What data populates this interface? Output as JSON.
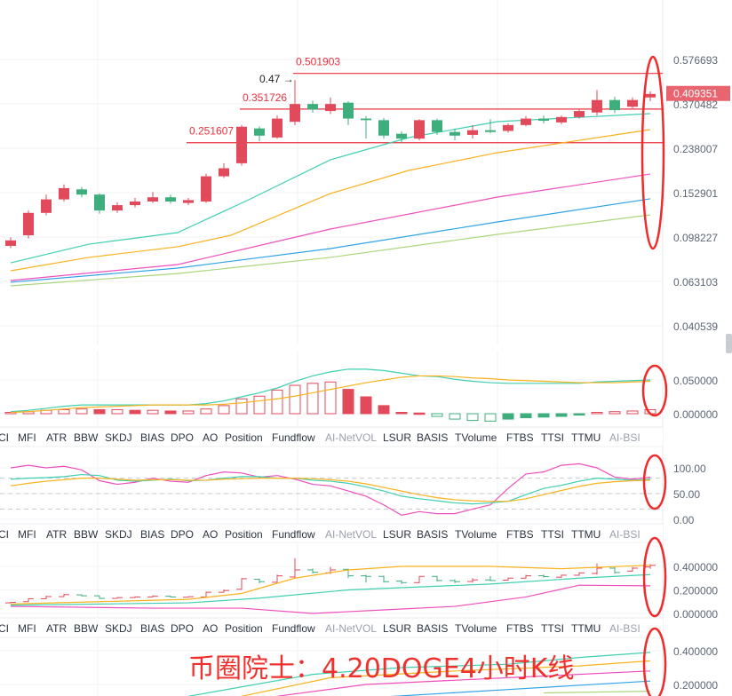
{
  "colors": {
    "up": "#e04a5a",
    "down": "#3dae7c",
    "level": "#e8323f",
    "annotation": "#ef2b2b",
    "price_tag": "#e8646f",
    "teal": "#3fcfb0",
    "orange": "#f9b21d",
    "pink": "#ee4fbd",
    "blue": "#2fa3e6",
    "lightgreen": "#a9d67c"
  },
  "main": {
    "price_axis": [
      "0.576693",
      "0.370482",
      "0.238007",
      "0.152901",
      "0.098227",
      "0.063103",
      "0.040539"
    ],
    "price_axis_values": [
      0.576693,
      0.370482,
      0.238007,
      0.152901,
      0.098227,
      0.063103,
      0.040539
    ],
    "current_price": "0.409351",
    "current_price_value": 0.409351,
    "levels": [
      {
        "label": "0.501903",
        "value": 0.501903
      },
      {
        "label": "0.351726",
        "value": 0.351726
      },
      {
        "label": "0.251607",
        "value": 0.251607
      }
    ],
    "high_marker": "0.47 →",
    "candles": [
      [
        0.09,
        0.095,
        0.098,
        0.088
      ],
      [
        0.1,
        0.125,
        0.128,
        0.097
      ],
      [
        0.125,
        0.143,
        0.15,
        0.122
      ],
      [
        0.143,
        0.16,
        0.166,
        0.14
      ],
      [
        0.158,
        0.15,
        0.162,
        0.146
      ],
      [
        0.15,
        0.128,
        0.152,
        0.124
      ],
      [
        0.128,
        0.135,
        0.139,
        0.125
      ],
      [
        0.135,
        0.14,
        0.145,
        0.132
      ],
      [
        0.14,
        0.146,
        0.154,
        0.138
      ],
      [
        0.146,
        0.14,
        0.15,
        0.137
      ],
      [
        0.138,
        0.142,
        0.145,
        0.135
      ],
      [
        0.14,
        0.18,
        0.185,
        0.138
      ],
      [
        0.18,
        0.195,
        0.205,
        0.177
      ],
      [
        0.205,
        0.295,
        0.3,
        0.2
      ],
      [
        0.29,
        0.27,
        0.296,
        0.255
      ],
      [
        0.265,
        0.32,
        0.33,
        0.262
      ],
      [
        0.31,
        0.37,
        0.47,
        0.3
      ],
      [
        0.37,
        0.35,
        0.382,
        0.34
      ],
      [
        0.345,
        0.37,
        0.395,
        0.335
      ],
      [
        0.375,
        0.32,
        0.38,
        0.3
      ],
      [
        0.32,
        0.315,
        0.328,
        0.262
      ],
      [
        0.315,
        0.27,
        0.322,
        0.262
      ],
      [
        0.275,
        0.262,
        0.282,
        0.25
      ],
      [
        0.262,
        0.315,
        0.318,
        0.258
      ],
      [
        0.315,
        0.28,
        0.32,
        0.272
      ],
      [
        0.28,
        0.27,
        0.29,
        0.258
      ],
      [
        0.272,
        0.285,
        0.3,
        0.262
      ],
      [
        0.285,
        0.28,
        0.318,
        0.276
      ],
      [
        0.283,
        0.3,
        0.305,
        0.278
      ],
      [
        0.3,
        0.32,
        0.328,
        0.296
      ],
      [
        0.32,
        0.313,
        0.33,
        0.305
      ],
      [
        0.308,
        0.325,
        0.33,
        0.303
      ],
      [
        0.325,
        0.345,
        0.35,
        0.32
      ],
      [
        0.34,
        0.385,
        0.425,
        0.33
      ],
      [
        0.385,
        0.348,
        0.398,
        0.338
      ],
      [
        0.36,
        0.385,
        0.395,
        0.355
      ],
      [
        0.395,
        0.409,
        0.42,
        0.38
      ]
    ],
    "ma_lines": [
      {
        "color": "teal",
        "points": [
          [
            0,
            0.076
          ],
          [
            4.4,
            0.0915
          ],
          [
            9.4,
            0.1027
          ],
          [
            13.4,
            0.1425
          ],
          [
            18,
            0.2122
          ],
          [
            22.4,
            0.2647
          ],
          [
            27.4,
            0.3104
          ],
          [
            36,
            0.3361
          ]
        ]
      },
      {
        "color": "orange",
        "points": [
          [
            0,
            0.0702
          ],
          [
            4.4,
            0.0802
          ],
          [
            9.4,
            0.0892
          ],
          [
            12.4,
            0.1
          ],
          [
            18,
            0.1516
          ],
          [
            22.4,
            0.1908
          ],
          [
            27.4,
            0.2278
          ],
          [
            36,
            0.2866
          ]
        ]
      },
      {
        "color": "pink",
        "points": [
          [
            0,
            0.0637
          ],
          [
            9.4,
            0.0747
          ],
          [
            18,
            0.1064
          ],
          [
            27.4,
            0.1463
          ],
          [
            36,
            0.1841
          ]
        ]
      },
      {
        "color": "blue",
        "points": [
          [
            0,
            0.0626
          ],
          [
            9.4,
            0.0721
          ],
          [
            18,
            0.0876
          ],
          [
            27.4,
            0.1142
          ],
          [
            36,
            0.1438
          ]
        ]
      },
      {
        "color": "lightgreen",
        "points": [
          [
            0,
            0.0604
          ],
          [
            9.4,
            0.0683
          ],
          [
            18,
            0.0802
          ],
          [
            27.4,
            0.1009
          ],
          [
            36,
            0.1226
          ]
        ]
      }
    ]
  },
  "indicator_tabs": [
    "CI",
    "MFI",
    "ATR",
    "BBW",
    "SKDJ",
    "BIAS",
    "DPO",
    "AO",
    "Position",
    "Fundflow",
    "AI-NetVOL",
    "LSUR",
    "BASIS",
    "TVolume",
    "FTBS",
    "TTSI",
    "TTMU",
    "AI-BSI"
  ],
  "indicator_tabs_dim": [
    "AI-NetVOL",
    "AI-BSI"
  ],
  "panel_macd": {
    "axis": [
      "0.050000",
      "0.000000"
    ],
    "axis_values": [
      0.05,
      0
    ],
    "histogram": [
      0.002,
      0.003,
      0.005,
      0.006,
      0.007,
      0.006,
      0.006,
      0.005,
      0.005,
      0.004,
      0.004,
      0.007,
      0.012,
      0.022,
      0.026,
      0.035,
      0.042,
      0.045,
      0.047,
      0.036,
      0.025,
      0.012,
      0.002,
      0.001,
      -0.004,
      -0.008,
      -0.01,
      -0.011,
      -0.008,
      -0.006,
      -0.005,
      -0.004,
      -0.002,
      0.002,
      0.003,
      0.004,
      0.006
    ],
    "lines": [
      {
        "color": "teal",
        "values": [
          0.003,
          0.005,
          0.008,
          0.011,
          0.013,
          0.013,
          0.013,
          0.013,
          0.013,
          0.013,
          0.013,
          0.015,
          0.019,
          0.025,
          0.031,
          0.038,
          0.048,
          0.056,
          0.062,
          0.066,
          0.066,
          0.064,
          0.06,
          0.056,
          0.055,
          0.051,
          0.048,
          0.046,
          0.045,
          0.045,
          0.045,
          0.045,
          0.045,
          0.047,
          0.048,
          0.049,
          0.05
        ]
      },
      {
        "color": "orange",
        "values": [
          0.002,
          0.003,
          0.005,
          0.007,
          0.009,
          0.01,
          0.011,
          0.012,
          0.013,
          0.013,
          0.013,
          0.013,
          0.014,
          0.016,
          0.019,
          0.022,
          0.026,
          0.031,
          0.036,
          0.041,
          0.046,
          0.05,
          0.054,
          0.056,
          0.056,
          0.055,
          0.053,
          0.052,
          0.05,
          0.049,
          0.048,
          0.047,
          0.046,
          0.046,
          0.046,
          0.047,
          0.048
        ]
      }
    ]
  },
  "panel_kdj": {
    "axis": [
      "100.00",
      "50.00",
      "0.00"
    ],
    "axis_values": [
      100,
      50,
      0
    ],
    "dashed_levels": [
      80,
      50,
      20
    ],
    "lines": [
      {
        "color": "pink",
        "values": [
          100,
          105,
          100,
          103,
          96,
          75,
          68,
          72,
          80,
          74,
          72,
          85,
          92,
          90,
          82,
          85,
          78,
          68,
          65,
          55,
          45,
          28,
          8,
          15,
          11,
          11,
          20,
          28,
          60,
          88,
          92,
          105,
          108,
          100,
          82,
          78,
          82
        ]
      },
      {
        "color": "teal",
        "values": [
          78,
          80,
          81,
          83,
          87,
          85,
          76,
          74,
          76,
          78,
          75,
          76,
          80,
          83,
          83,
          80,
          80,
          76,
          74,
          70,
          63,
          55,
          45,
          40,
          36,
          32,
          30,
          32,
          35,
          48,
          60,
          66,
          74,
          80,
          78,
          76,
          78
        ]
      },
      {
        "color": "orange",
        "values": [
          65,
          70,
          74,
          77,
          80,
          80,
          78,
          76,
          77,
          77,
          76,
          76,
          78,
          79,
          80,
          80,
          80,
          79,
          77,
          74,
          69,
          62,
          55,
          48,
          42,
          38,
          36,
          35,
          35,
          40,
          48,
          56,
          64,
          70,
          73,
          75,
          76
        ]
      }
    ]
  },
  "panel_boll": {
    "axis": [
      "0.400000",
      "0.200000",
      "0.000000"
    ],
    "axis_values": [
      0.4,
      0.2,
      0
    ],
    "lines": [
      {
        "color": "orange",
        "points": [
          [
            0,
            0.08
          ],
          [
            5,
            0.1
          ],
          [
            10,
            0.12
          ],
          [
            13,
            0.17
          ],
          [
            16,
            0.3
          ],
          [
            19,
            0.37
          ],
          [
            22,
            0.4
          ],
          [
            27,
            0.4
          ],
          [
            31,
            0.38
          ],
          [
            36,
            0.41
          ]
        ]
      },
      {
        "color": "teal",
        "points": [
          [
            0,
            0.07
          ],
          [
            10,
            0.09
          ],
          [
            14,
            0.13
          ],
          [
            19,
            0.2
          ],
          [
            27,
            0.25
          ],
          [
            32,
            0.3
          ],
          [
            36,
            0.33
          ]
        ]
      },
      {
        "color": "pink",
        "points": [
          [
            0,
            0.06
          ],
          [
            8,
            0.045
          ],
          [
            13,
            0.045
          ],
          [
            17,
            0.0
          ],
          [
            21,
            0.03
          ],
          [
            25,
            0.06
          ],
          [
            29,
            0.14
          ],
          [
            32,
            0.24
          ],
          [
            36,
            0.235
          ]
        ]
      }
    ]
  },
  "panel_ma2": {
    "axis": [
      "0.400000",
      "0.200000"
    ],
    "axis_values": [
      0.4,
      0.2
    ],
    "lines": [
      {
        "color": "teal",
        "points": [
          [
            10,
            0.13
          ],
          [
            17,
            0.26
          ],
          [
            22,
            0.3
          ],
          [
            28,
            0.32
          ],
          [
            32,
            0.36
          ],
          [
            36,
            0.39
          ]
        ]
      },
      {
        "color": "orange",
        "points": [
          [
            13,
            0.13
          ],
          [
            18,
            0.24
          ],
          [
            25,
            0.28
          ],
          [
            32,
            0.31
          ],
          [
            36,
            0.34
          ]
        ]
      },
      {
        "color": "pink",
        "points": [
          [
            15,
            0.13
          ],
          [
            20,
            0.2
          ],
          [
            28,
            0.24
          ],
          [
            36,
            0.28
          ]
        ]
      },
      {
        "color": "blue",
        "points": [
          [
            20,
            0.12
          ],
          [
            28,
            0.17
          ],
          [
            36,
            0.22
          ]
        ]
      },
      {
        "color": "lightgreen",
        "points": [
          [
            30,
            0.15
          ],
          [
            36,
            0.16
          ]
        ]
      }
    ]
  },
  "watermark": "币圈院士：4.20DOGE4小时K线"
}
